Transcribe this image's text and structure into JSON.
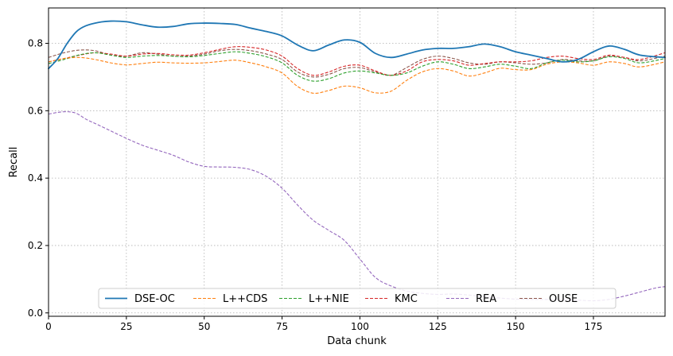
{
  "chart_data": {
    "type": "line",
    "xlabel": "Data chunk",
    "ylabel": "Recall",
    "xlim": [
      0,
      198
    ],
    "ylim": [
      -0.01,
      0.905
    ],
    "x_ticks": [
      0,
      25,
      50,
      75,
      100,
      125,
      150,
      175
    ],
    "y_ticks": [
      0.0,
      0.2,
      0.4,
      0.6,
      0.8
    ],
    "x_tick_labels": [
      "0",
      "25",
      "50",
      "75",
      "100",
      "125",
      "150",
      "175"
    ],
    "y_tick_labels": [
      "0.0",
      "0.2",
      "0.4",
      "0.6",
      "0.8"
    ],
    "grid": true,
    "legend_placement": "bottom-center",
    "series": [
      {
        "name": "DSE-OC",
        "color": "#1f77b4",
        "dash": "solid",
        "x": [
          0,
          3,
          6,
          9,
          12,
          16,
          20,
          25,
          30,
          35,
          40,
          45,
          50,
          55,
          60,
          65,
          70,
          75,
          80,
          85,
          90,
          95,
          100,
          105,
          110,
          115,
          120,
          125,
          130,
          135,
          140,
          145,
          150,
          155,
          160,
          165,
          170,
          175,
          180,
          185,
          190,
          198
        ],
        "y": [
          0.725,
          0.755,
          0.8,
          0.835,
          0.852,
          0.862,
          0.866,
          0.864,
          0.855,
          0.848,
          0.85,
          0.858,
          0.86,
          0.859,
          0.856,
          0.845,
          0.835,
          0.822,
          0.795,
          0.778,
          0.795,
          0.81,
          0.803,
          0.77,
          0.758,
          0.768,
          0.78,
          0.785,
          0.785,
          0.79,
          0.798,
          0.79,
          0.775,
          0.765,
          0.755,
          0.745,
          0.752,
          0.775,
          0.792,
          0.782,
          0.765,
          0.758
        ]
      },
      {
        "name": "L++CDS",
        "color": "#ff7f0e",
        "dash": "dashed",
        "x": [
          0,
          5,
          10,
          15,
          20,
          25,
          30,
          35,
          40,
          45,
          50,
          55,
          60,
          65,
          70,
          75,
          80,
          85,
          90,
          95,
          100,
          105,
          110,
          115,
          120,
          125,
          130,
          135,
          140,
          145,
          150,
          155,
          160,
          165,
          170,
          175,
          180,
          185,
          190,
          198
        ],
        "y": [
          0.745,
          0.755,
          0.758,
          0.752,
          0.742,
          0.736,
          0.74,
          0.744,
          0.742,
          0.741,
          0.742,
          0.746,
          0.75,
          0.742,
          0.73,
          0.712,
          0.672,
          0.652,
          0.66,
          0.673,
          0.668,
          0.653,
          0.658,
          0.69,
          0.715,
          0.725,
          0.718,
          0.703,
          0.712,
          0.726,
          0.722,
          0.722,
          0.738,
          0.745,
          0.742,
          0.735,
          0.745,
          0.74,
          0.73,
          0.745
        ]
      },
      {
        "name": "L++NIE",
        "color": "#2ca02c",
        "dash": "dashed",
        "x": [
          0,
          5,
          10,
          15,
          20,
          25,
          30,
          35,
          40,
          45,
          50,
          55,
          60,
          65,
          70,
          75,
          80,
          85,
          90,
          95,
          100,
          105,
          110,
          115,
          120,
          125,
          130,
          135,
          140,
          145,
          150,
          155,
          160,
          165,
          170,
          175,
          180,
          185,
          190,
          198
        ],
        "y": [
          0.74,
          0.752,
          0.766,
          0.772,
          0.765,
          0.758,
          0.762,
          0.764,
          0.762,
          0.76,
          0.764,
          0.77,
          0.775,
          0.77,
          0.76,
          0.742,
          0.705,
          0.688,
          0.695,
          0.712,
          0.718,
          0.712,
          0.705,
          0.712,
          0.732,
          0.745,
          0.738,
          0.725,
          0.73,
          0.738,
          0.732,
          0.725,
          0.742,
          0.75,
          0.745,
          0.748,
          0.76,
          0.755,
          0.742,
          0.755
        ]
      },
      {
        "name": "KMC",
        "color": "#d62728",
        "dash": "dashed",
        "x": [
          0,
          5,
          10,
          15,
          20,
          25,
          30,
          35,
          40,
          45,
          50,
          55,
          60,
          65,
          70,
          75,
          80,
          85,
          90,
          95,
          100,
          105,
          110,
          115,
          120,
          125,
          130,
          135,
          140,
          145,
          150,
          155,
          160,
          165,
          170,
          175,
          180,
          185,
          190,
          198
        ],
        "y": [
          0.745,
          0.755,
          0.765,
          0.772,
          0.768,
          0.762,
          0.768,
          0.77,
          0.766,
          0.765,
          0.772,
          0.782,
          0.79,
          0.788,
          0.78,
          0.762,
          0.725,
          0.705,
          0.715,
          0.732,
          0.735,
          0.718,
          0.705,
          0.718,
          0.745,
          0.752,
          0.748,
          0.735,
          0.74,
          0.745,
          0.745,
          0.748,
          0.758,
          0.762,
          0.755,
          0.752,
          0.765,
          0.758,
          0.752,
          0.772
        ]
      },
      {
        "name": "REA",
        "color": "#9467bd",
        "dash": "dashed",
        "x": [
          0,
          3,
          6,
          9,
          12,
          15,
          20,
          25,
          30,
          35,
          40,
          45,
          50,
          55,
          60,
          65,
          70,
          75,
          80,
          85,
          90,
          95,
          100,
          105,
          110,
          115,
          120,
          125,
          130,
          135,
          140,
          145,
          150,
          155,
          160,
          165,
          170,
          175,
          180,
          185,
          190,
          195,
          198
        ],
        "y": [
          0.59,
          0.595,
          0.597,
          0.592,
          0.575,
          0.562,
          0.54,
          0.518,
          0.498,
          0.483,
          0.468,
          0.448,
          0.435,
          0.433,
          0.432,
          0.425,
          0.405,
          0.37,
          0.32,
          0.275,
          0.245,
          0.215,
          0.16,
          0.105,
          0.08,
          0.065,
          0.058,
          0.055,
          0.056,
          0.053,
          0.048,
          0.044,
          0.041,
          0.04,
          0.04,
          0.04,
          0.038,
          0.036,
          0.04,
          0.05,
          0.062,
          0.074,
          0.078
        ]
      },
      {
        "name": "OUSE",
        "color": "#8c564b",
        "dash": "dashed",
        "x": [
          0,
          5,
          10,
          15,
          20,
          25,
          30,
          35,
          40,
          45,
          50,
          55,
          60,
          65,
          70,
          75,
          80,
          85,
          90,
          95,
          100,
          105,
          110,
          115,
          120,
          125,
          130,
          135,
          140,
          145,
          150,
          155,
          160,
          165,
          170,
          175,
          180,
          185,
          190,
          198
        ],
        "y": [
          0.758,
          0.772,
          0.78,
          0.778,
          0.765,
          0.762,
          0.772,
          0.768,
          0.762,
          0.762,
          0.768,
          0.778,
          0.782,
          0.778,
          0.768,
          0.752,
          0.715,
          0.7,
          0.708,
          0.725,
          0.728,
          0.715,
          0.705,
          0.728,
          0.752,
          0.762,
          0.755,
          0.742,
          0.738,
          0.745,
          0.742,
          0.738,
          0.742,
          0.752,
          0.748,
          0.748,
          0.762,
          0.758,
          0.748,
          0.762
        ]
      }
    ]
  }
}
